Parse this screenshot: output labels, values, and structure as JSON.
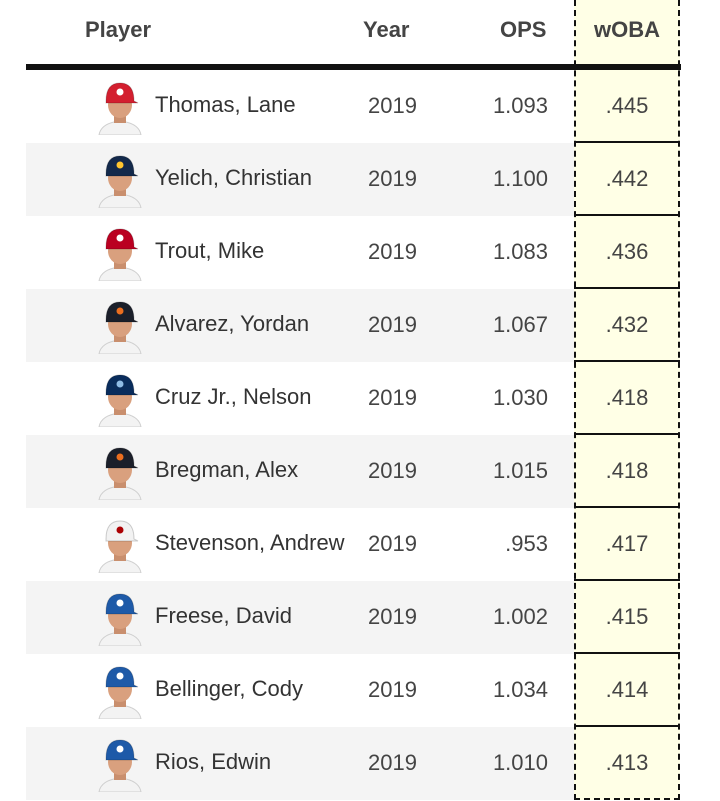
{
  "columns": {
    "player": "Player",
    "year": "Year",
    "ops": "OPS",
    "woba": "wOBA"
  },
  "rows": [
    {
      "name": "Thomas, Lane",
      "year": "2019",
      "ops": "1.093",
      "woba": ".445",
      "cap": "#d31f2f",
      "logo": "#ffffff"
    },
    {
      "name": "Yelich, Christian",
      "year": "2019",
      "ops": "1.100",
      "woba": ".442",
      "cap": "#13294b",
      "logo": "#ffc52f"
    },
    {
      "name": "Trout, Mike",
      "year": "2019",
      "ops": "1.083",
      "woba": ".436",
      "cap": "#ba0021",
      "logo": "#ffffff"
    },
    {
      "name": "Alvarez, Yordan",
      "year": "2019",
      "ops": "1.067",
      "woba": ".432",
      "cap": "#1b1f2a",
      "logo": "#eb6e1f"
    },
    {
      "name": "Cruz Jr., Nelson",
      "year": "2019",
      "ops": "1.030",
      "woba": ".418",
      "cap": "#092c5c",
      "logo": "#8fbce6"
    },
    {
      "name": "Bregman, Alex",
      "year": "2019",
      "ops": "1.015",
      "woba": ".418",
      "cap": "#1b1f2a",
      "logo": "#eb6e1f"
    },
    {
      "name": "Stevenson, Andrew",
      "year": "2019",
      "ops": ".953",
      "woba": ".417",
      "cap": "#f2f2f2",
      "logo": "#ab0003"
    },
    {
      "name": "Freese, David",
      "year": "2019",
      "ops": "1.002",
      "woba": ".415",
      "cap": "#1e5aa8",
      "logo": "#ffffff"
    },
    {
      "name": "Bellinger, Cody",
      "year": "2019",
      "ops": "1.034",
      "woba": ".414",
      "cap": "#1e5aa8",
      "logo": "#ffffff"
    },
    {
      "name": "Rios, Edwin",
      "year": "2019",
      "ops": "1.010",
      "woba": ".413",
      "cap": "#1e5aa8",
      "logo": "#ffffff"
    }
  ]
}
